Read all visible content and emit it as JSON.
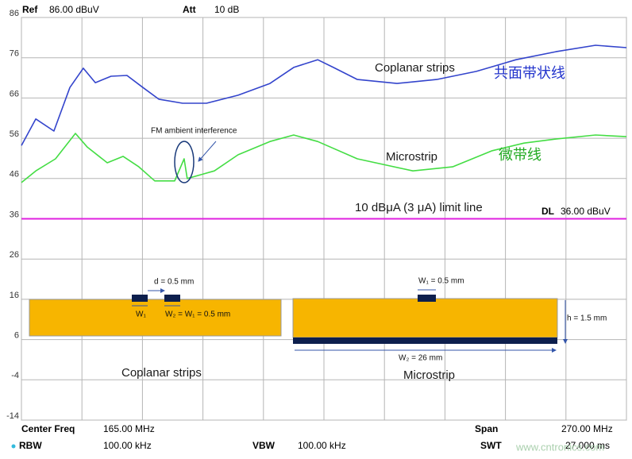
{
  "chart_data": {
    "type": "line",
    "header": {
      "ref_label": "Ref",
      "ref_value": "86.00 dBuV",
      "att_label": "Att",
      "att_value": "10 dB"
    },
    "footer": {
      "center_label": "Center Freq",
      "center_value": "165.00 MHz",
      "span_label": "Span",
      "span_value": "270.00 MHz",
      "rbw_label": "RBW",
      "rbw_value": "100.00 kHz",
      "vbw_label": "VBW",
      "vbw_value": "100.00 kHz",
      "swt_label": "SWT",
      "swt_value": "27.000 ms",
      "watermark": "www.cntronics.com"
    },
    "xlim": [
      30,
      300
    ],
    "xticks": [
      30,
      57,
      84,
      111,
      138,
      165,
      192,
      219,
      246,
      273,
      300
    ],
    "ylim": [
      -14,
      86
    ],
    "yticks": [
      86,
      76,
      66,
      56,
      46,
      36,
      26,
      16,
      6,
      -4,
      -14
    ],
    "grid": true,
    "series": [
      {
        "name": "Coplanar strips",
        "label_cn": "共面带状线",
        "color": "#3344cc",
        "x": [
          30,
          36.4,
          44.5,
          51.6,
          57.6,
          63,
          70,
          77.1,
          84.2,
          91.3,
          101.9,
          112.6,
          126.7,
          140.9,
          151.5,
          162.2,
          169.2,
          179.9,
          197.6,
          215.3,
          233,
          250.7,
          268.5,
          286.2,
          300
        ],
        "values": [
          54.2,
          60.8,
          57.8,
          68.6,
          73.4,
          69.8,
          71.4,
          71.6,
          68.6,
          65.7,
          64.7,
          64.7,
          66.7,
          69.6,
          73.6,
          75.5,
          73.6,
          70.6,
          69.6,
          70.6,
          72.6,
          75.5,
          77.5,
          79.1,
          78.5
        ]
      },
      {
        "name": "Microstrip",
        "label_cn": "微带线",
        "color": "#44dd44",
        "x": [
          30,
          36.4,
          45.2,
          54.1,
          59.4,
          68.3,
          75.4,
          82.4,
          89.5,
          98.4,
          102.6,
          104,
          116.1,
          126.7,
          140.9,
          151.5,
          162.2,
          179.9,
          204.7,
          222.4,
          240.1,
          254.3,
          268.5,
          286.2,
          300
        ],
        "values": [
          45,
          47.9,
          50.9,
          57.2,
          53.8,
          49.9,
          51.5,
          48.9,
          45.4,
          45.4,
          50.9,
          46,
          47.9,
          51.9,
          55.2,
          56.8,
          55.2,
          50.9,
          47.9,
          48.9,
          52.9,
          54.8,
          55.8,
          56.8,
          56.4
        ]
      }
    ],
    "limit_line": {
      "value": 36,
      "label": "DL",
      "value_label": "36.00 dBuV",
      "color": "#e020e0",
      "caption": "10 dBμA (3 μA) limit line"
    },
    "annotations": {
      "fm": "FM ambient interference"
    },
    "inset": {
      "d": "d = 0.5 mm",
      "w1": "W₁",
      "w2": "W₂ = W₁ = 0.5 mm",
      "left_title": "Coplanar strips",
      "mw1": "W₁ = 0.5 mm",
      "h": "h = 1.5 mm",
      "mw2": "W₂ = 26 mm",
      "right_title": "Microstrip"
    }
  }
}
